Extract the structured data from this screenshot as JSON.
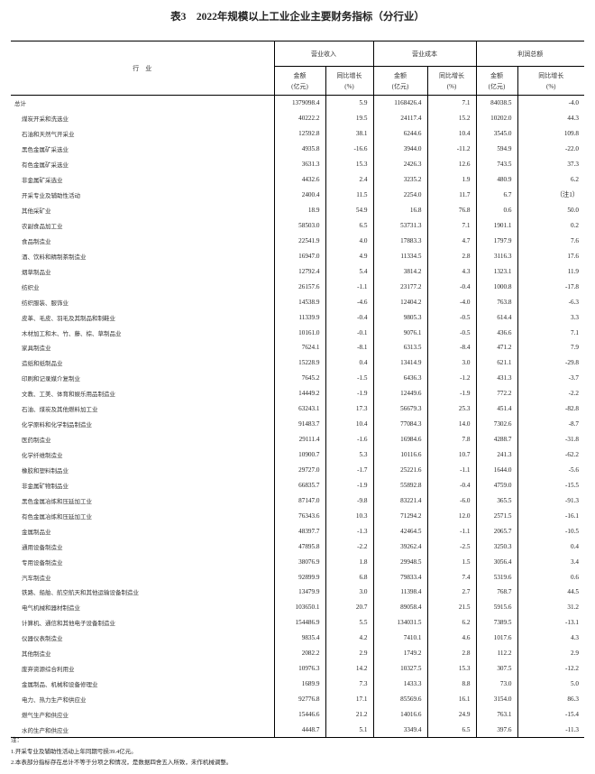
{
  "title": "表3　2022年规模以上工业企业主要财务指标（分行业）",
  "header": {
    "industry": "行　业",
    "groups": [
      "营业收入",
      "营业成本",
      "利润总额"
    ],
    "amount": "金额",
    "amount_unit": "(亿元)",
    "growth": "同比增长",
    "growth_unit": "(%)"
  },
  "rows": [
    [
      "总计",
      "1379098.4",
      "5.9",
      "1168426.4",
      "7.1",
      "84038.5",
      "-4.0"
    ],
    [
      "煤炭开采和洗选业",
      "40222.2",
      "19.5",
      "24117.4",
      "15.2",
      "10202.0",
      "44.3"
    ],
    [
      "石油和天然气开采业",
      "12592.8",
      "38.1",
      "6244.6",
      "10.4",
      "3545.0",
      "109.8"
    ],
    [
      "黑色金属矿采选业",
      "4935.8",
      "-16.6",
      "3944.0",
      "-11.2",
      "594.9",
      "-22.0"
    ],
    [
      "有色金属矿采选业",
      "3631.3",
      "15.3",
      "2426.3",
      "12.6",
      "743.5",
      "37.3"
    ],
    [
      "非金属矿采选业",
      "4432.6",
      "2.4",
      "3235.2",
      "1.9",
      "480.9",
      "6.2"
    ],
    [
      "开采专业及辅助性活动",
      "2400.4",
      "11.5",
      "2254.0",
      "11.7",
      "6.7",
      "（注1）"
    ],
    [
      "其他采矿业",
      "18.9",
      "54.9",
      "16.8",
      "76.8",
      "0.6",
      "50.0"
    ],
    [
      "农副食品加工业",
      "58503.0",
      "6.5",
      "53731.3",
      "7.1",
      "1901.1",
      "0.2"
    ],
    [
      "食品制造业",
      "22541.9",
      "4.0",
      "17883.3",
      "4.7",
      "1797.9",
      "7.6"
    ],
    [
      "酒、饮料和精制茶制造业",
      "16947.0",
      "4.9",
      "11334.5",
      "2.8",
      "3116.3",
      "17.6"
    ],
    [
      "烟草制品业",
      "12792.4",
      "5.4",
      "3814.2",
      "4.3",
      "1323.1",
      "11.9"
    ],
    [
      "纺织业",
      "26157.6",
      "-1.1",
      "23177.2",
      "-0.4",
      "1000.8",
      "-17.8"
    ],
    [
      "纺织服装、服饰业",
      "14538.9",
      "-4.6",
      "12404.2",
      "-4.0",
      "763.8",
      "-6.3"
    ],
    [
      "皮革、毛皮、羽毛及其制品和制鞋业",
      "11339.9",
      "-0.4",
      "9805.3",
      "-0.5",
      "614.4",
      "3.3"
    ],
    [
      "木材加工和木、竹、藤、棕、草制品业",
      "10161.0",
      "-0.1",
      "9076.1",
      "-0.5",
      "436.6",
      "7.1"
    ],
    [
      "家具制造业",
      "7624.1",
      "-8.1",
      "6313.5",
      "-8.4",
      "471.2",
      "7.9"
    ],
    [
      "造纸和纸制品业",
      "15228.9",
      "0.4",
      "13414.9",
      "3.0",
      "621.1",
      "-29.8"
    ],
    [
      "印刷和记录媒介复制业",
      "7645.2",
      "-1.5",
      "6436.3",
      "-1.2",
      "431.3",
      "-3.7"
    ],
    [
      "文教、工美、体育和娱乐用品制造业",
      "14449.2",
      "-1.9",
      "12449.6",
      "-1.9",
      "772.2",
      "-2.2"
    ],
    [
      "石油、煤炭及其他燃料加工业",
      "63243.1",
      "17.3",
      "56679.3",
      "25.3",
      "451.4",
      "-82.8"
    ],
    [
      "化学原料和化学制品制造业",
      "91483.7",
      "10.4",
      "77084.3",
      "14.0",
      "7302.6",
      "-8.7"
    ],
    [
      "医药制造业",
      "29111.4",
      "-1.6",
      "16984.6",
      "7.8",
      "4288.7",
      "-31.8"
    ],
    [
      "化学纤维制造业",
      "10900.7",
      "5.3",
      "10116.6",
      "10.7",
      "241.3",
      "-62.2"
    ],
    [
      "橡胶和塑料制品业",
      "29727.0",
      "-1.7",
      "25221.6",
      "-1.1",
      "1644.0",
      "-5.6"
    ],
    [
      "非金属矿物制品业",
      "66835.7",
      "-1.9",
      "55892.8",
      "-0.4",
      "4759.0",
      "-15.5"
    ],
    [
      "黑色金属冶炼和压延加工业",
      "87147.0",
      "-9.8",
      "83221.4",
      "-6.0",
      "365.5",
      "-91.3"
    ],
    [
      "有色金属冶炼和压延加工业",
      "76343.6",
      "10.3",
      "71294.2",
      "12.0",
      "2571.5",
      "-16.1"
    ],
    [
      "金属制品业",
      "48397.7",
      "-1.3",
      "42464.5",
      "-1.1",
      "2065.7",
      "-10.5"
    ],
    [
      "通用设备制造业",
      "47895.8",
      "-2.2",
      "39262.4",
      "-2.5",
      "3250.3",
      "0.4"
    ],
    [
      "专用设备制造业",
      "38076.9",
      "1.8",
      "29948.5",
      "1.5",
      "3056.4",
      "3.4"
    ],
    [
      "汽车制造业",
      "92899.9",
      "6.8",
      "79833.4",
      "7.4",
      "5319.6",
      "0.6"
    ],
    [
      "铁路、船舶、航空航天和其他运输设备制造业",
      "13479.9",
      "3.0",
      "11398.4",
      "2.7",
      "768.7",
      "44.5"
    ],
    [
      "电气机械和器材制造业",
      "103650.1",
      "20.7",
      "89058.4",
      "21.5",
      "5915.6",
      "31.2"
    ],
    [
      "计算机、通信和其他电子设备制造业",
      "154486.9",
      "5.5",
      "134031.5",
      "6.2",
      "7389.5",
      "-13.1"
    ],
    [
      "仪器仪表制造业",
      "9835.4",
      "4.2",
      "7410.1",
      "4.6",
      "1017.6",
      "4.3"
    ],
    [
      "其他制造业",
      "2082.2",
      "2.9",
      "1749.2",
      "2.8",
      "112.2",
      "2.9"
    ],
    [
      "废弃资源综合利用业",
      "10976.3",
      "14.2",
      "10327.5",
      "15.3",
      "307.5",
      "-12.2"
    ],
    [
      "金属制品、机械和设备修理业",
      "1689.9",
      "7.3",
      "1433.3",
      "8.8",
      "73.0",
      "5.0"
    ],
    [
      "电力、热力生产和供应业",
      "92776.8",
      "17.1",
      "85569.6",
      "16.1",
      "3154.0",
      "86.3"
    ],
    [
      "燃气生产和供应业",
      "15446.6",
      "21.2",
      "14016.6",
      "24.9",
      "763.1",
      "-15.4"
    ],
    [
      "水的生产和供应业",
      "4448.7",
      "5.1",
      "3349.4",
      "6.5",
      "397.6",
      "-11.3"
    ]
  ],
  "notes": [
    "注：",
    "1.开采专业及辅助性活动上年同期亏损39.4亿元。",
    "2.本表部分指标存在总计不等于分项之和情况，是数据四舍五入所致，未作机械调整。"
  ]
}
